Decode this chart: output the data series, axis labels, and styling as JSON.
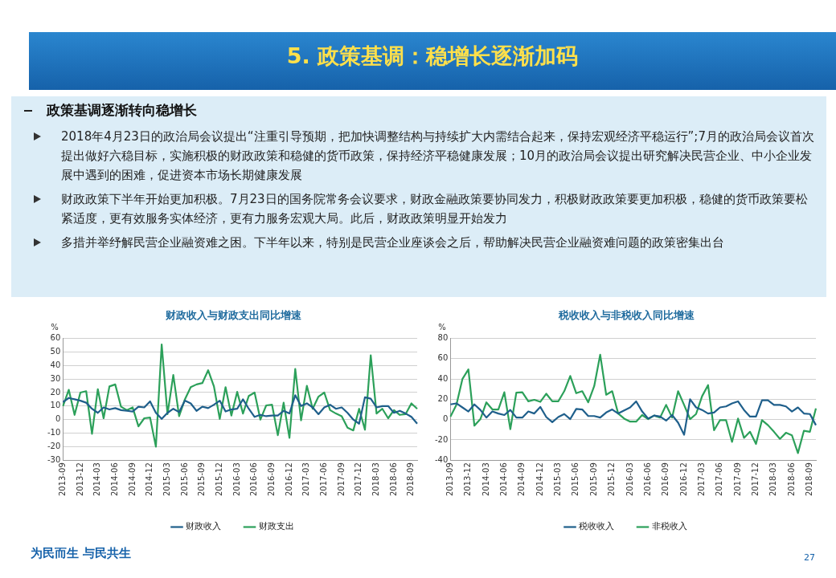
{
  "chart_data": [
    {
      "type": "other",
      "title": "5. 政策基调：稳增长逐渐加码",
      "subtitle": "政策基调逐渐转向稳增长",
      "annotations": [
        "2018年4月23日的政治局会议提出“注重引导预期，把加快调整结构与持续扩大内需结合起来，保持宏观经济平稳运行”;7月的政治局会议首次提出做好六稳目标，实施积极的财政政策和稳健的货币政策，保持经济平稳健康发展；10月的政治局会议提出研究解决民营企业、中小企业发展中遇到的困难，促进资本市场长期健康发展",
        "财政政策下半年开始更加积极。7月23日的国务院常务会议要求，财政金融政策要协同发力，积极财政政策要更加积极，稳健的货币政策要松紧适度，更有效服务实体经济，更有力服务宏观大局。此后，财政政策明显开始发力",
        "多措并举纾解民营企业融资难之困。下半年以来，特别是民营企业座谈会之后，帮助解决民营企业融资难问题的政策密集出台",
        "为民而生 与民共生",
        "27"
      ]
    },
    {
      "type": "line",
      "title": "财政收入与财政支出同比增速",
      "ylabel": "%",
      "categories": [
        "2013-09",
        null,
        null,
        "2013-12",
        null,
        null,
        "2014-03",
        null,
        null,
        "2014-06",
        null,
        null,
        "2014-09",
        null,
        null,
        "2014-12",
        null,
        null,
        "2015-03",
        null,
        null,
        "2015-06",
        null,
        null,
        "2015-09",
        null,
        null,
        "2015-12",
        null,
        null,
        "2016-03",
        null,
        null,
        "2016-06",
        null,
        null,
        "2016-09",
        null,
        null,
        "2016-12",
        null,
        null,
        "2017-03",
        null,
        null,
        "2017-06",
        null,
        null,
        "2017-09",
        null,
        null,
        "2017-12",
        null,
        null,
        "2018-03",
        null,
        null,
        "2018-06",
        null,
        null,
        "2018-09",
        null
      ],
      "ylim": [
        -30,
        60
      ],
      "yticks": [
        -30,
        -20,
        -10,
        0,
        10,
        20,
        30,
        40,
        50,
        60
      ],
      "grid": "y",
      "legend": "bottom",
      "marker": "none",
      "line_style": "solid",
      "series": [
        {
          "name": "财政收入",
          "color": "#1f5f8b",
          "values": [
            13,
            16,
            15,
            14,
            12.5,
            8,
            5,
            9,
            7.5,
            8.5,
            7,
            6.5,
            6,
            9.5,
            9,
            13.5,
            5,
            0.5,
            5,
            8,
            5.5,
            14,
            12,
            6.5,
            9.5,
            8.5,
            11,
            14,
            6,
            7.5,
            8,
            15,
            8,
            2,
            3.5,
            2.5,
            3,
            3,
            6.5,
            4.5,
            18,
            10,
            12,
            9,
            4,
            9,
            11,
            8,
            9,
            5,
            0,
            -3,
            16.5,
            15.5,
            9,
            10,
            10,
            5,
            6.5,
            4.5,
            2,
            -3
          ]
        },
        {
          "name": "财政支出",
          "color": "#2ca05a",
          "values": [
            10,
            22,
            3.5,
            20,
            21,
            -10.5,
            22.5,
            1,
            24.5,
            26,
            9.5,
            7,
            9,
            -5,
            1,
            1.5,
            -20,
            55.5,
            4,
            33,
            2.5,
            15,
            24,
            26,
            27,
            36.5,
            24.5,
            0.5,
            24,
            3,
            20.5,
            4.5,
            17.5,
            20,
            0,
            10.5,
            11,
            -11.5,
            12.5,
            -13.5,
            37.5,
            -0.5,
            25,
            8,
            17,
            20,
            7,
            4.5,
            2.5,
            -6,
            -8,
            8,
            -7.5,
            47.5,
            4.5,
            8,
            1,
            7,
            3.5,
            4,
            12,
            8
          ]
        }
      ]
    },
    {
      "type": "line",
      "title": "税收收入与非税收入同比增速",
      "ylabel": "%",
      "categories": [
        "2013-09",
        null,
        null,
        "2013-12",
        null,
        null,
        "2014-03",
        null,
        null,
        "2014-06",
        null,
        null,
        "2014-09",
        null,
        null,
        "2014-12",
        null,
        null,
        "2015-03",
        null,
        null,
        "2015-06",
        null,
        null,
        "2015-09",
        null,
        null,
        "2015-12",
        null,
        null,
        "2016-03",
        null,
        null,
        "2016-06",
        null,
        null,
        "2016-09",
        null,
        null,
        "2016-12",
        null,
        null,
        "2017-03",
        null,
        null,
        "2017-06",
        null,
        null,
        "2017-09",
        null,
        null,
        "2017-12",
        null,
        null,
        "2018-03",
        null,
        null,
        "2018-06",
        null,
        null,
        "2018-09",
        null
      ],
      "ylim": [
        -40,
        80
      ],
      "yticks": [
        -40,
        -20,
        0,
        20,
        40,
        60,
        80
      ],
      "grid": "y",
      "legend": "bottom",
      "marker": "none",
      "line_style": "solid",
      "series": [
        {
          "name": "税收收入",
          "color": "#1f5f8b",
          "values": [
            15,
            16,
            12,
            8,
            15,
            9.5,
            2,
            8,
            6,
            4.5,
            9.5,
            2,
            2,
            8,
            6,
            12.5,
            2.5,
            -2.5,
            2.5,
            5.5,
            0.5,
            10.5,
            10,
            3.5,
            3.5,
            2,
            7,
            10,
            6,
            9,
            12,
            18,
            8,
            1,
            4,
            3,
            -1,
            4.5,
            -3,
            -15,
            20,
            12,
            9.5,
            6,
            7,
            12,
            13,
            16,
            18,
            9.5,
            3,
            3,
            19,
            19,
            14.5,
            14.5,
            13,
            8,
            12,
            6,
            5.5,
            -5.5
          ]
        },
        {
          "name": "非税收入",
          "color": "#2ca05a",
          "values": [
            3,
            14.5,
            40,
            49.5,
            -6,
            0.5,
            17,
            10,
            10,
            27,
            -9.5,
            26.5,
            27,
            18,
            19.5,
            17.5,
            25.5,
            18,
            18,
            28,
            43,
            26,
            28,
            17,
            33,
            64,
            24.5,
            28,
            6,
            1,
            -2,
            -2,
            4.5,
            0.5,
            4,
            2,
            14.5,
            2,
            28,
            14.5,
            0.5,
            5.5,
            23,
            34,
            -10.5,
            -0.5,
            -0.5,
            -22,
            1,
            -18,
            -12,
            -24,
            -0.5,
            -5.5,
            -12,
            -19,
            -13,
            -15.5,
            -33,
            -11,
            -12,
            11
          ]
        }
      ]
    }
  ]
}
